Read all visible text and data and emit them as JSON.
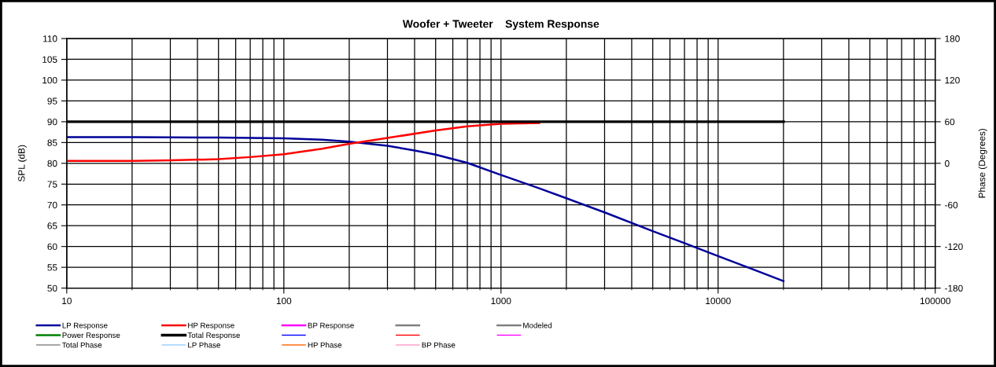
{
  "chart_data": {
    "type": "line",
    "title": "Woofer + Tweeter    System Response",
    "ylabel": "SPL (dB)",
    "y2label": "Phase (Degrees)",
    "log": "x",
    "grid": true,
    "legend": "bottom",
    "line_style": "solid",
    "xlim": [
      10,
      100000
    ],
    "xticks": [
      10,
      100,
      1000,
      10000,
      100000
    ],
    "ylim": [
      50,
      110
    ],
    "yticks": [
      50,
      55,
      60,
      65,
      70,
      75,
      80,
      85,
      90,
      95,
      100,
      105,
      110
    ],
    "y2lim": [
      -180,
      180
    ],
    "y2ticks": [
      -180,
      -120,
      -60,
      0,
      60,
      120,
      180
    ],
    "series": [
      {
        "name": "LP Response",
        "color": "#000099",
        "x": [
          10,
          20,
          50,
          100,
          150,
          200,
          300,
          400,
          500,
          700,
          1000,
          1500,
          2000,
          3000,
          5000,
          7000,
          10000,
          15000,
          20000
        ],
        "values": [
          86.3,
          86.3,
          86.2,
          86.0,
          85.7,
          85.2,
          84.2,
          83.1,
          82.1,
          80.1,
          77.2,
          74.0,
          71.6,
          68.2,
          63.7,
          60.8,
          57.7,
          54.2,
          51.7
        ]
      },
      {
        "name": "HP Response",
        "color": "#ff0000",
        "x": [
          10,
          20,
          30,
          50,
          70,
          100,
          150,
          200,
          300,
          500,
          700,
          1000,
          1500
        ],
        "values": [
          80.6,
          80.6,
          80.7,
          81.0,
          81.5,
          82.2,
          83.5,
          84.7,
          86.1,
          87.9,
          88.9,
          89.5,
          89.7
        ]
      },
      {
        "name": "BP Response",
        "color": "#ff00ff"
      },
      {
        "color": "#808080"
      },
      {
        "name": "Modeled",
        "color": "#808080"
      },
      {
        "name": "Power Response",
        "color": "#008000"
      },
      {
        "name": "Total Response",
        "color": "#000000",
        "x": [
          10,
          20000
        ],
        "values": [
          90,
          90
        ]
      },
      {
        "color": "#0000ff"
      },
      {
        "color": "#ff0000"
      },
      {
        "color": "#ff00ff"
      },
      {
        "name": "Total Phase",
        "color": "#808080"
      },
      {
        "name": "LP Phase",
        "color": "#99ccff"
      },
      {
        "name": "HP Phase",
        "color": "#ff6600"
      },
      {
        "name": "BP Phase",
        "color": "#ff99cc"
      }
    ]
  }
}
